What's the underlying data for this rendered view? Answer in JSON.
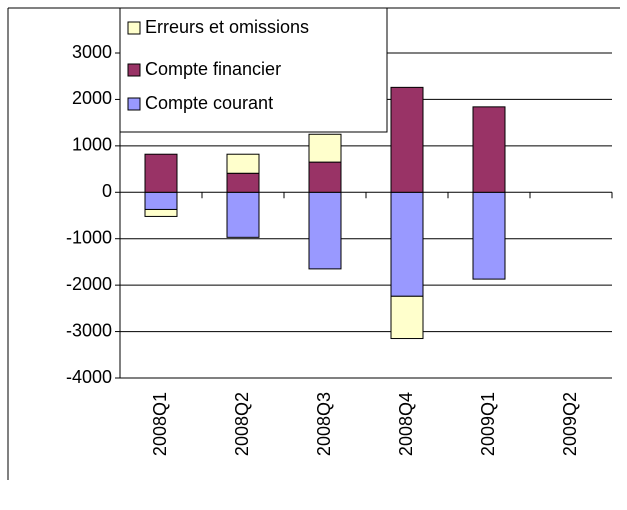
{
  "chart_data": {
    "type": "stacked_bar",
    "categories": [
      "2008Q1",
      "2008Q2",
      "2008Q3",
      "2008Q4",
      "2009Q1",
      "2009Q2"
    ],
    "series": [
      {
        "name": "Compte courant",
        "color": "#9999ff",
        "values": [
          -370,
          -970,
          -1650,
          -2240,
          -1870,
          null
        ]
      },
      {
        "name": "Compte financier",
        "color": "#993366",
        "values": [
          820,
          410,
          650,
          2260,
          1840,
          null
        ]
      },
      {
        "name": "Erreurs et omissions",
        "color": "#ffffcc",
        "values": [
          -150,
          410,
          600,
          -910,
          null,
          null
        ]
      }
    ],
    "ylim": [
      -4000,
      3000
    ],
    "yticks": [
      -4000,
      -3000,
      -2000,
      -1000,
      0,
      1000,
      2000,
      3000
    ],
    "grid": true,
    "legend": "top-left"
  }
}
